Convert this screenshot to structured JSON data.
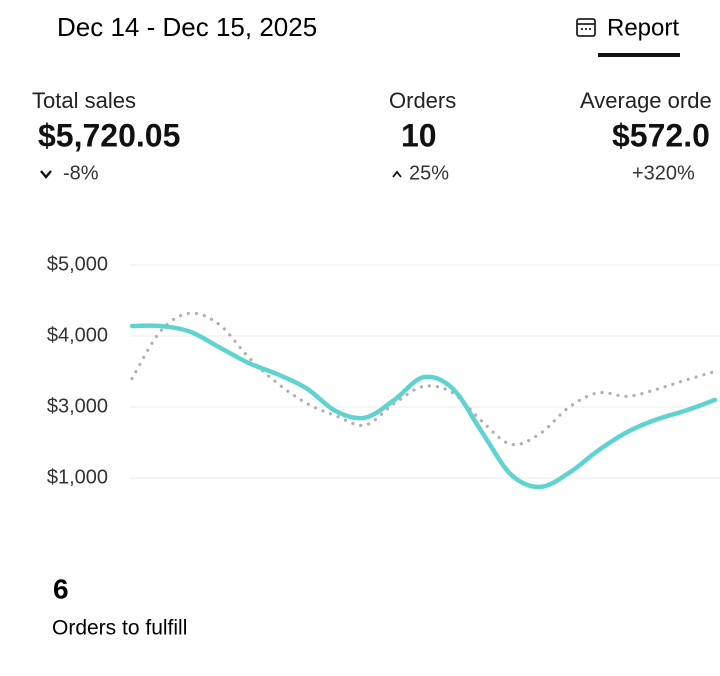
{
  "header": {
    "date_range": "Dec 14 - Dec 15, 2025",
    "report_tab": "Report"
  },
  "metrics": [
    {
      "label": "Total sales",
      "value": "$5,720.05",
      "change": "-8%"
    },
    {
      "label": "Orders",
      "value": "10",
      "change": "25%"
    },
    {
      "label": "Average orde",
      "value": "$572.0",
      "change": "+320%"
    }
  ],
  "chart_data": {
    "type": "line",
    "ylim": [
      0,
      5000
    ],
    "yticks": [
      {
        "value": 5000,
        "label": "$5,000"
      },
      {
        "value": 4000,
        "label": "$4,000"
      },
      {
        "value": 3000,
        "label": "$3,000"
      },
      {
        "value": 1000,
        "label": "$1,000"
      }
    ],
    "grid": true,
    "series": [
      {
        "color": "#5fd3cf",
        "style": "solid",
        "values": [
          4140,
          4140,
          4060,
          3840,
          3620,
          3460,
          3260,
          2880,
          2700,
          3100,
          3420,
          3260,
          2300,
          1100,
          750,
          1150,
          1780,
          2300,
          2650,
          2900,
          3100
        ]
      },
      {
        "color": "#b0b0b0",
        "style": "dotted",
        "values": [
          3400,
          4080,
          4320,
          4160,
          3700,
          3330,
          3050,
          2750,
          2490,
          3050,
          3290,
          3200,
          2600,
          1950,
          2250,
          3000,
          3200,
          3150,
          3250,
          3380,
          3500
        ]
      }
    ]
  },
  "fulfill": {
    "count": 6,
    "label": "Orders to fulfill"
  }
}
